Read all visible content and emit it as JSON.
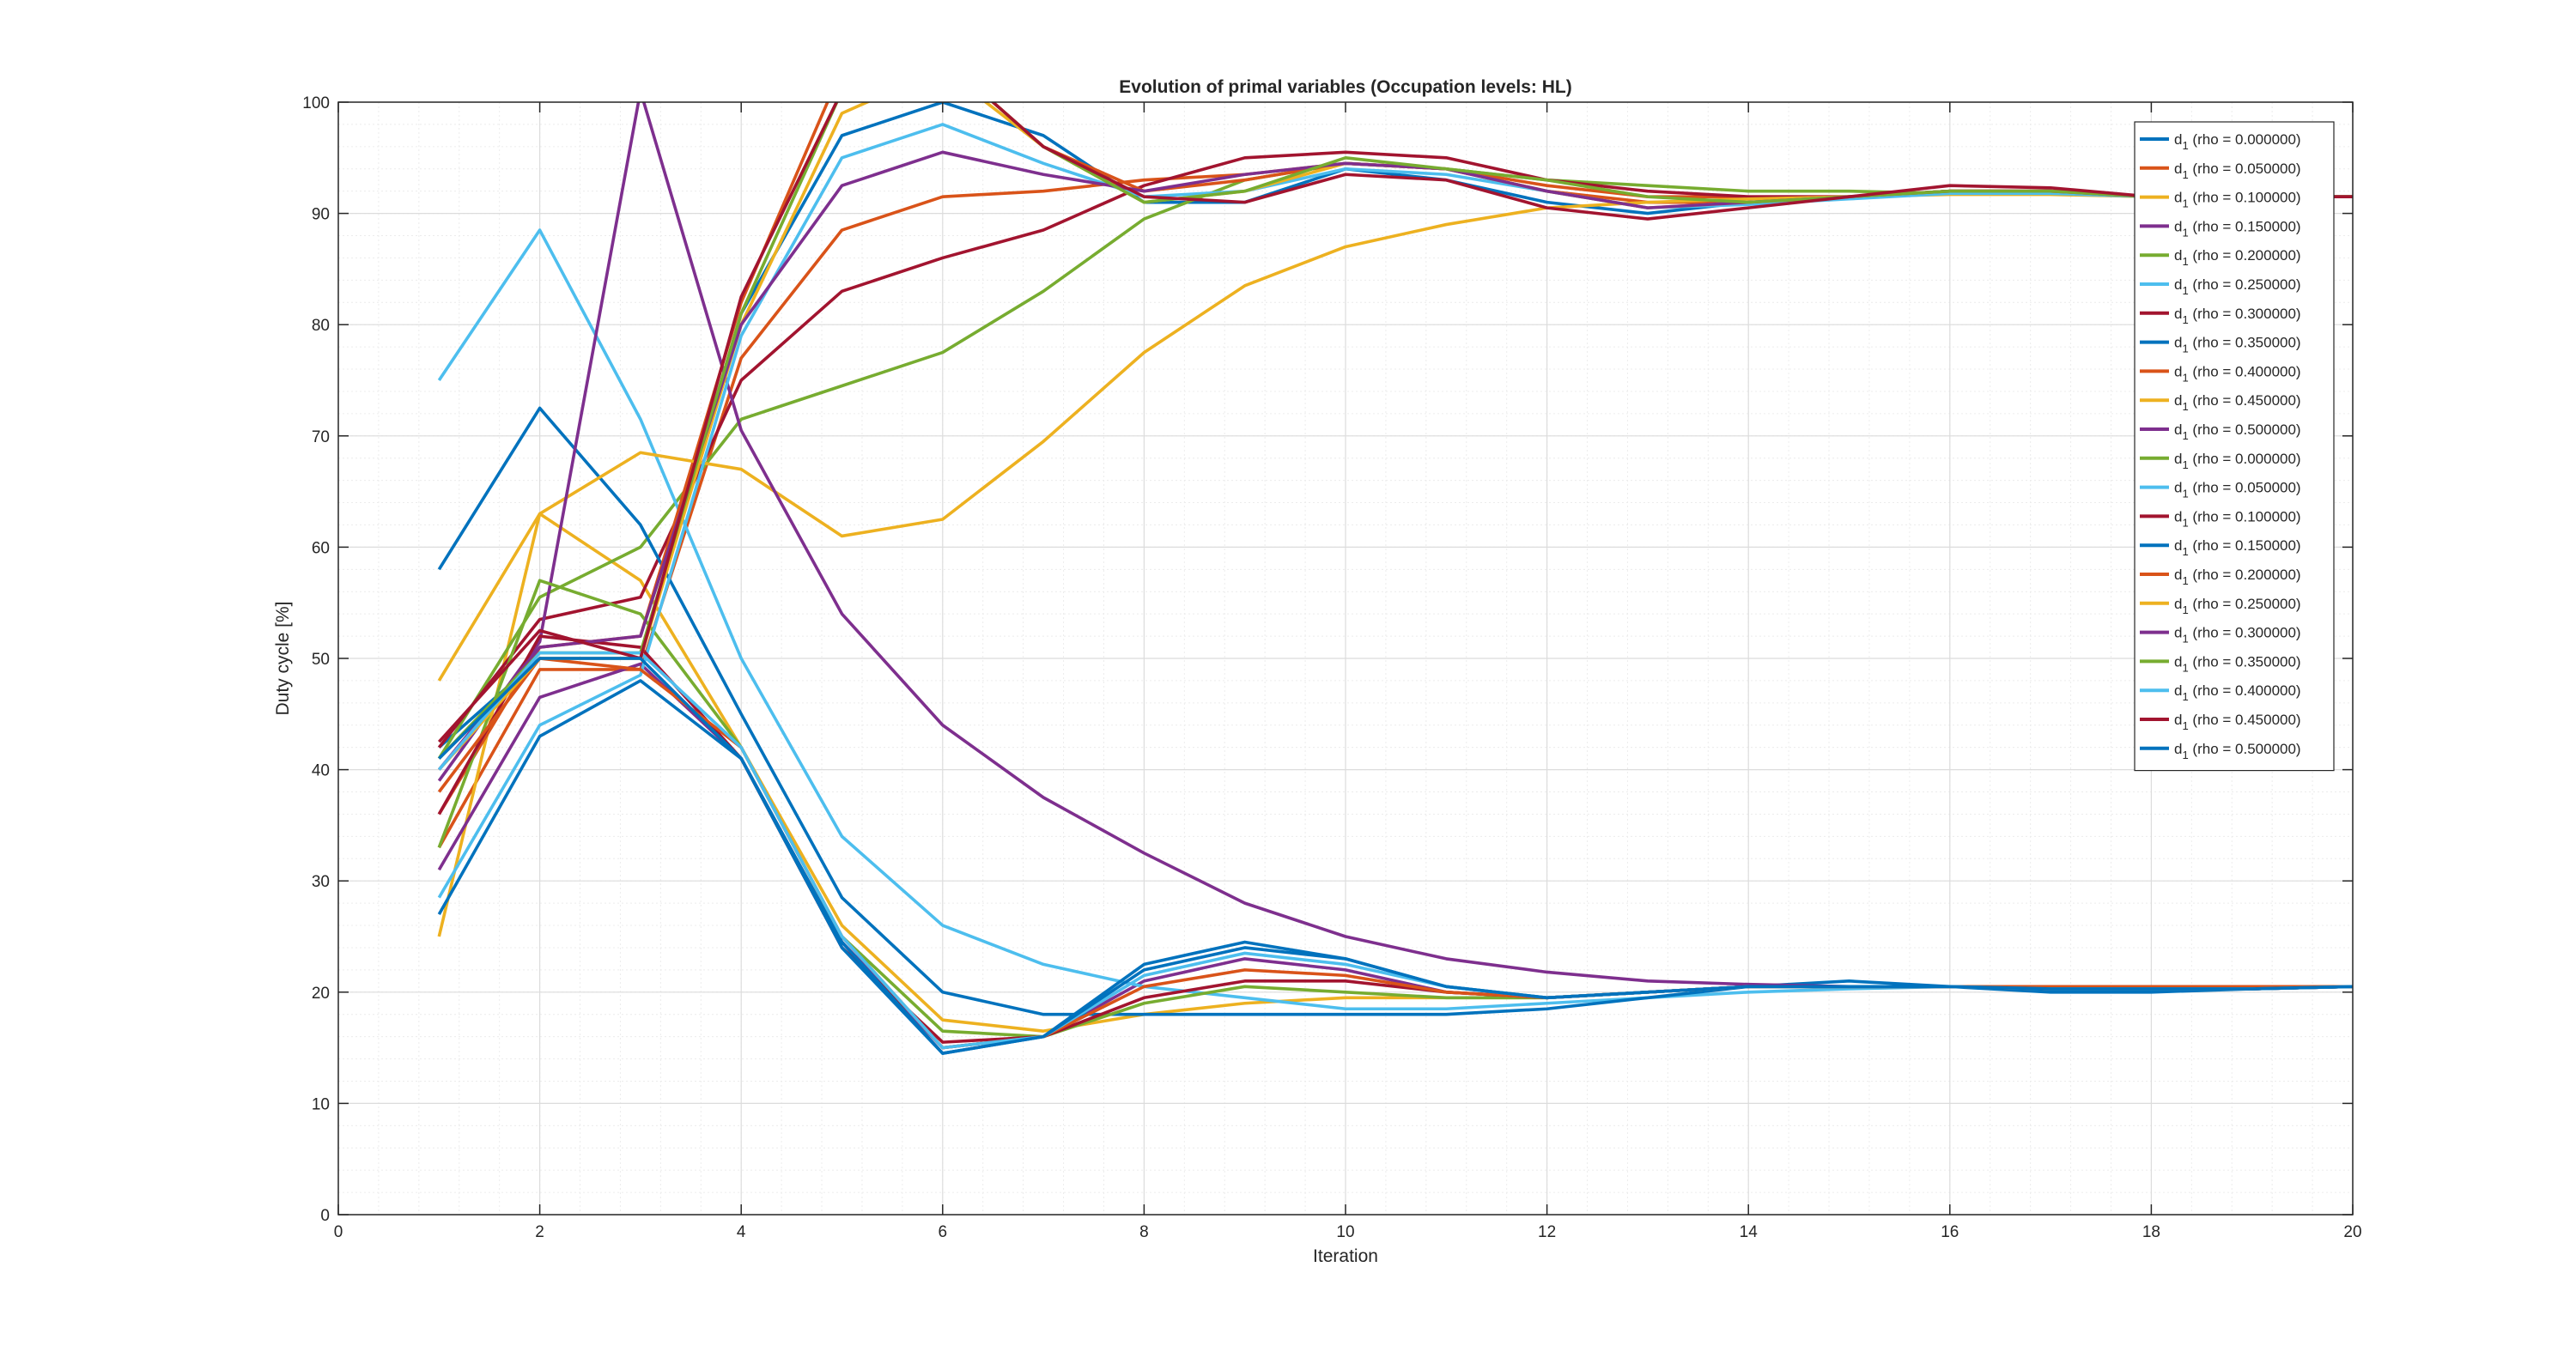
{
  "chart_data": {
    "type": "line",
    "title": "Evolution of primal variables (Occupation levels: HL)",
    "xlabel": "Iteration",
    "ylabel": "Duty cycle [%]",
    "xlim": [
      0,
      20
    ],
    "ylim": [
      0,
      100
    ],
    "x_ticks": [
      0,
      2,
      4,
      6,
      8,
      10,
      12,
      14,
      16,
      18,
      20
    ],
    "y_ticks": [
      0,
      10,
      20,
      30,
      40,
      50,
      60,
      70,
      80,
      90,
      100
    ],
    "grid": true,
    "minor_grid": true,
    "legend_position": "top-right",
    "x": [
      1,
      2,
      3,
      4,
      5,
      6,
      7,
      8,
      9,
      10,
      11,
      12,
      13,
      14,
      15,
      16,
      17,
      18,
      19,
      20
    ],
    "series": [
      {
        "name": "d1 (rho = 0.000000)",
        "color": "#0072BD",
        "values": [
          42,
          50,
          50,
          81,
          97,
          100,
          97,
          91,
          91,
          94,
          93,
          91,
          90,
          91,
          91.5,
          92,
          92,
          91.5,
          91.5,
          91.5
        ]
      },
      {
        "name": "d1 (rho = 0.050000)",
        "color": "#D95319",
        "values": [
          33,
          49,
          49,
          77,
          88.5,
          91.5,
          92,
          93,
          93.5,
          94.5,
          94,
          92.5,
          91.5,
          91.5,
          91.5,
          92,
          92,
          91.5,
          91.5,
          91.5
        ]
      },
      {
        "name": "d1 (rho = 0.100000)",
        "color": "#EDB120",
        "values": [
          25,
          63,
          57,
          42,
          26,
          17.5,
          16.5,
          18,
          19,
          19.5,
          19.5,
          19.5,
          20,
          20.5,
          20.5,
          20.5,
          20.5,
          20.5,
          20.5,
          20.5
        ]
      },
      {
        "name": "d1 (rho = 0.150000)",
        "color": "#7E2F8E",
        "values": [
          31,
          46.5,
          49.5,
          41,
          24.5,
          15,
          16,
          21,
          23,
          22,
          20,
          19.5,
          20,
          20.5,
          20.5,
          20.5,
          20.3,
          20.3,
          20.3,
          20.5
        ]
      },
      {
        "name": "d1 (rho = 0.200000)",
        "color": "#77AC30",
        "values": [
          41,
          55.5,
          60,
          71.5,
          74.5,
          77.5,
          83,
          89.5,
          93,
          94.5,
          94,
          93,
          92.5,
          92,
          92,
          91.8,
          91.8,
          91.5,
          91.5,
          91.5
        ]
      },
      {
        "name": "d1 (rho = 0.250000)",
        "color": "#4DBEEE",
        "values": [
          75,
          88.5,
          71.5,
          50,
          34,
          26,
          22.5,
          20.5,
          19.5,
          18.5,
          18.5,
          19,
          19.5,
          20,
          20.3,
          20.5,
          20.5,
          20.5,
          20.5,
          20.5
        ]
      },
      {
        "name": "d1 (rho = 0.300000)",
        "color": "#A2142F",
        "values": [
          42,
          53.5,
          55.5,
          75,
          83,
          86,
          88.5,
          92.5,
          95,
          95.5,
          95,
          93,
          92,
          91.5,
          91.5,
          92,
          92,
          91.5,
          91.5,
          91.5
        ]
      },
      {
        "name": "d1 (rho = 0.350000)",
        "color": "#0072BD",
        "values": [
          58,
          72.5,
          62,
          45,
          28.5,
          20,
          18,
          18,
          18,
          18,
          18,
          18.5,
          19.5,
          20.5,
          21,
          20.5,
          20,
          20,
          20.3,
          20.5
        ]
      },
      {
        "name": "d1 (rho = 0.400000)",
        "color": "#D95319",
        "values": [
          36,
          51,
          52,
          82,
          103,
          104,
          96,
          92,
          93,
          94.5,
          94,
          92,
          91,
          91,
          91.5,
          92,
          92,
          91.5,
          91.5,
          91.5
        ]
      },
      {
        "name": "d1 (rho = 0.450000)",
        "color": "#EDB120",
        "values": [
          48,
          63,
          68.5,
          67,
          61,
          62.5,
          69.5,
          77.5,
          83.5,
          87,
          89,
          90.5,
          91,
          91.3,
          91.5,
          91.7,
          91.7,
          91.5,
          91.5,
          91.5
        ]
      },
      {
        "name": "d1 (rho = 0.500000)",
        "color": "#7E2F8E",
        "values": [
          39,
          51.5,
          101,
          70.5,
          54,
          44,
          37.5,
          32.5,
          28,
          25,
          23,
          21.8,
          21,
          20.7,
          20.5,
          20.5,
          20.3,
          20.3,
          20.3,
          20.5
        ]
      },
      {
        "name": "d1 (rho = 0.000000)",
        "color": "#77AC30",
        "values": [
          33,
          57,
          54,
          42,
          25,
          16.5,
          16,
          19,
          20.5,
          20,
          19.5,
          19.5,
          20,
          20.5,
          20.5,
          20.5,
          20.3,
          20.3,
          20.3,
          20.5
        ]
      },
      {
        "name": "d1 (rho = 0.050000)",
        "color": "#4DBEEE",
        "values": [
          28.5,
          44,
          48.5,
          79,
          95,
          98,
          94.5,
          91.5,
          92,
          94,
          93.5,
          92,
          90.5,
          90.8,
          91.3,
          91.8,
          91.8,
          91.5,
          91.5,
          91.5
        ]
      },
      {
        "name": "d1 (rho = 0.100000)",
        "color": "#A2142F",
        "values": [
          36,
          52,
          51,
          41,
          24,
          15.5,
          16,
          19.5,
          21,
          21,
          20,
          19.5,
          20,
          20.5,
          20.5,
          20.5,
          20.3,
          20.3,
          20.3,
          20.5
        ]
      },
      {
        "name": "d1 (rho = 0.150000)",
        "color": "#0072BD",
        "values": [
          27,
          43,
          48,
          41,
          24.5,
          14.5,
          16,
          22.5,
          24.5,
          23,
          20.5,
          19.5,
          20,
          20.5,
          20.5,
          20.5,
          20.3,
          20.3,
          20.3,
          20.5
        ]
      },
      {
        "name": "d1 (rho = 0.200000)",
        "color": "#D95319",
        "values": [
          38,
          50,
          49,
          42,
          25,
          15,
          16,
          20.5,
          22,
          21.5,
          20,
          19.5,
          20,
          20.5,
          20.5,
          20.5,
          20.5,
          20.5,
          20.5,
          20.5
        ]
      },
      {
        "name": "d1 (rho = 0.250000)",
        "color": "#EDB120",
        "values": [
          40,
          50,
          50,
          80,
          99,
          103,
          96,
          91,
          92,
          94.5,
          94,
          92,
          90.5,
          91,
          91.5,
          92,
          92,
          91.5,
          91.5,
          91.5
        ]
      },
      {
        "name": "d1 (rho = 0.300000)",
        "color": "#7E2F8E",
        "values": [
          40,
          51,
          52,
          80,
          92.5,
          95.5,
          93.5,
          92,
          93.5,
          94.5,
          94,
          92,
          90.5,
          91,
          91.5,
          92,
          92,
          91.5,
          91.5,
          91.5
        ]
      },
      {
        "name": "d1 (rho = 0.350000)",
        "color": "#77AC30",
        "values": [
          41,
          50.5,
          50.5,
          81,
          101,
          104,
          96,
          91,
          92,
          95,
          94,
          93,
          91.5,
          91,
          91.5,
          92,
          92,
          91.5,
          91.5,
          91.5
        ]
      },
      {
        "name": "d1 (rho = 0.400000)",
        "color": "#4DBEEE",
        "values": [
          40,
          50.5,
          50.5,
          42,
          25,
          15,
          16,
          21.5,
          23.5,
          22.5,
          20.5,
          19.5,
          20,
          20.5,
          20.5,
          20.5,
          20.3,
          20.3,
          20.3,
          20.5
        ]
      },
      {
        "name": "d1 (rho = 0.450000)",
        "color": "#A2142F",
        "values": [
          42.5,
          52.5,
          50,
          82.5,
          101,
          104,
          96,
          91.5,
          91,
          93.5,
          93,
          90.5,
          89.5,
          90.5,
          91.5,
          92.5,
          92.3,
          91.5,
          91.5,
          91.5
        ]
      },
      {
        "name": "d1 (rho = 0.500000)",
        "color": "#0072BD",
        "values": [
          41,
          50,
          50,
          41,
          24,
          14.5,
          16,
          22,
          24,
          23,
          20.5,
          19.5,
          20,
          20.5,
          20.5,
          20.5,
          20.3,
          20.3,
          20.3,
          20.5
        ]
      }
    ]
  }
}
